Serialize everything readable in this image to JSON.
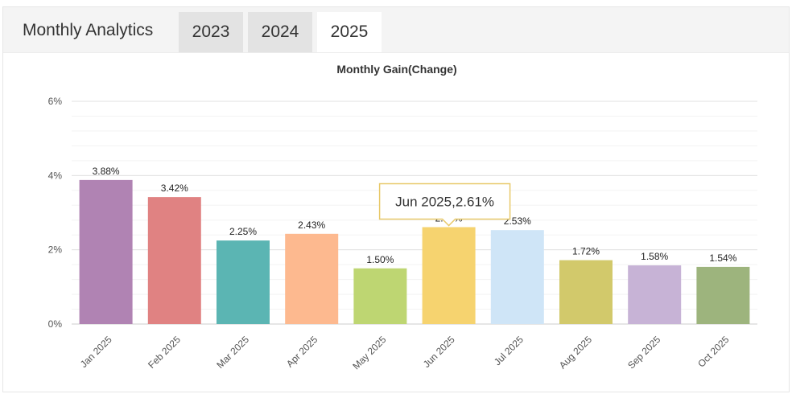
{
  "header": {
    "title": "Monthly Analytics",
    "tabs": [
      {
        "label": "2023",
        "active": false
      },
      {
        "label": "2024",
        "active": false
      },
      {
        "label": "2025",
        "active": true
      }
    ]
  },
  "tooltip": {
    "text": "Jun 2025,2.61%",
    "category": "Jun 2025"
  },
  "chart_data": {
    "type": "bar",
    "title": "Monthly Gain(Change)",
    "xlabel": "",
    "ylabel": "",
    "categories": [
      "Jan 2025",
      "Feb 2025",
      "Mar 2025",
      "Apr 2025",
      "May 2025",
      "Jun 2025",
      "Jul 2025",
      "Aug 2025",
      "Sep 2025",
      "Oct 2025"
    ],
    "values": [
      3.88,
      3.42,
      2.25,
      2.43,
      1.5,
      2.61,
      2.53,
      1.72,
      1.58,
      1.54
    ],
    "value_labels": [
      "3.88%",
      "3.42%",
      "2.25%",
      "2.43%",
      "1.50%",
      "2.61%",
      "2.53%",
      "1.72%",
      "1.58%",
      "1.54%"
    ],
    "colors": [
      "#b083b3",
      "#e08282",
      "#5bb5b3",
      "#fdb98f",
      "#bed672",
      "#f6d36f",
      "#cfe5f7",
      "#d2c96b",
      "#c7b3d6",
      "#9db47d"
    ],
    "yticks": [
      0,
      2,
      4,
      6
    ],
    "ytick_labels": [
      "0%",
      "2%",
      "4%",
      "6%"
    ],
    "ylim": [
      0,
      6
    ],
    "grid": true,
    "legend": "none"
  }
}
